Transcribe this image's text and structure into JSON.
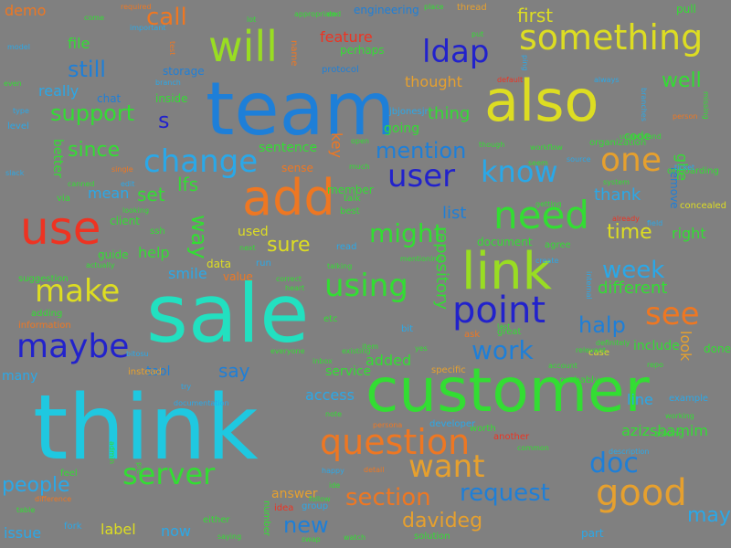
{
  "background": "#808080",
  "colors": {
    "cyan": "#1fc8e0",
    "teal": "#22e0c0",
    "blue": "#1e7fd8",
    "navy": "#2222cc",
    "green": "#33dd33",
    "lime": "#99dd22",
    "yellow": "#dddd22",
    "orange": "#ee7722",
    "gold": "#e6a02e",
    "red": "#ee3322",
    "purple": "#6a3acc",
    "sky": "#2aa8e8",
    "mint": "#44e088",
    "pale": "#cceeaa"
  },
  "words": [
    {
      "text": "think",
      "color": "cyan"
    },
    {
      "text": "sale",
      "color": "teal"
    },
    {
      "text": "team",
      "color": "blue"
    },
    {
      "text": "customer",
      "color": "green"
    },
    {
      "text": "also",
      "color": "yellow"
    },
    {
      "text": "link",
      "color": "lime"
    },
    {
      "text": "add",
      "color": "orange"
    },
    {
      "text": "use",
      "color": "red"
    },
    {
      "text": "something",
      "color": "yellow"
    },
    {
      "text": "will",
      "color": "lime"
    },
    {
      "text": "need",
      "color": "green"
    },
    {
      "text": "point",
      "color": "navy"
    },
    {
      "text": "question",
      "color": "orange"
    },
    {
      "text": "good",
      "color": "gold"
    },
    {
      "text": "maybe",
      "color": "navy"
    },
    {
      "text": "make",
      "color": "yellow"
    },
    {
      "text": "change",
      "color": "sky"
    },
    {
      "text": "using",
      "color": "green"
    },
    {
      "text": "one",
      "color": "gold"
    },
    {
      "text": "server",
      "color": "green"
    },
    {
      "text": "ldap",
      "color": "navy"
    },
    {
      "text": "know",
      "color": "sky"
    },
    {
      "text": "user",
      "color": "navy"
    },
    {
      "text": "see",
      "color": "orange"
    },
    {
      "text": "want",
      "color": "gold"
    },
    {
      "text": "work",
      "color": "blue"
    },
    {
      "text": "doc",
      "color": "blue"
    },
    {
      "text": "might",
      "color": "green"
    },
    {
      "text": "request",
      "color": "blue"
    },
    {
      "text": "section",
      "color": "orange"
    },
    {
      "text": "call",
      "color": "orange"
    },
    {
      "text": "still",
      "color": "blue"
    },
    {
      "text": "support",
      "color": "green"
    },
    {
      "text": "since",
      "color": "green"
    },
    {
      "text": "mention",
      "color": "blue"
    },
    {
      "text": "week",
      "color": "sky"
    },
    {
      "text": "halp",
      "color": "blue"
    },
    {
      "text": "people",
      "color": "sky"
    },
    {
      "text": "new",
      "color": "blue"
    },
    {
      "text": "davideg",
      "color": "gold"
    },
    {
      "text": "sure",
      "color": "yellow"
    },
    {
      "text": "way",
      "color": "green"
    },
    {
      "text": "time",
      "color": "yellow"
    },
    {
      "text": "well",
      "color": "green"
    },
    {
      "text": "first",
      "color": "yellow"
    },
    {
      "text": "set",
      "color": "green"
    },
    {
      "text": "lfs",
      "color": "green"
    },
    {
      "text": "help",
      "color": "green"
    },
    {
      "text": "smile",
      "color": "sky"
    },
    {
      "text": "different",
      "color": "green"
    },
    {
      "text": "say",
      "color": "blue"
    },
    {
      "text": "access",
      "color": "sky"
    },
    {
      "text": "line",
      "color": "sky"
    },
    {
      "text": "azizshamim",
      "color": "green"
    },
    {
      "text": "may",
      "color": "sky"
    },
    {
      "text": "issue",
      "color": "sky"
    },
    {
      "text": "label",
      "color": "yellow"
    },
    {
      "text": "thought",
      "color": "gold"
    },
    {
      "text": "thing",
      "color": "green"
    },
    {
      "text": "file",
      "color": "green"
    },
    {
      "text": "really",
      "color": "sky"
    },
    {
      "text": "s",
      "color": "navy"
    },
    {
      "text": "mean",
      "color": "sky"
    },
    {
      "text": "thank",
      "color": "sky"
    },
    {
      "text": "going",
      "color": "green"
    },
    {
      "text": "sentence",
      "color": "green"
    },
    {
      "text": "list",
      "color": "blue"
    },
    {
      "text": "many",
      "color": "sky"
    },
    {
      "text": "tool",
      "color": "blue"
    },
    {
      "text": "added",
      "color": "green"
    },
    {
      "text": "service",
      "color": "green"
    },
    {
      "text": "answer",
      "color": "gold"
    },
    {
      "text": "now",
      "color": "sky"
    },
    {
      "text": "right",
      "color": "green"
    },
    {
      "text": "include",
      "color": "green"
    },
    {
      "text": "look",
      "color": "gold"
    },
    {
      "text": "feature",
      "color": "red"
    },
    {
      "text": "repository",
      "color": "green"
    },
    {
      "text": "key",
      "color": "orange"
    },
    {
      "text": "used",
      "color": "yellow"
    },
    {
      "text": "storage",
      "color": "blue"
    },
    {
      "text": "engineering",
      "color": "blue"
    },
    {
      "text": "pull",
      "color": "green"
    },
    {
      "text": "demo",
      "color": "orange"
    },
    {
      "text": "better",
      "color": "green"
    },
    {
      "text": "client",
      "color": "green"
    },
    {
      "text": "document",
      "color": "green"
    },
    {
      "text": "member",
      "color": "green"
    },
    {
      "text": "guide",
      "color": "green"
    },
    {
      "text": "data",
      "color": "yellow"
    },
    {
      "text": "value",
      "color": "orange"
    },
    {
      "text": "code",
      "color": "green"
    },
    {
      "text": "remove",
      "color": "blue"
    },
    {
      "text": "ghe",
      "color": "green"
    },
    {
      "text": "done",
      "color": "green"
    },
    {
      "text": "inside",
      "color": "green"
    },
    {
      "text": "perhaps",
      "color": "green"
    },
    {
      "text": "protocol",
      "color": "blue"
    },
    {
      "text": "chat",
      "color": "blue"
    },
    {
      "text": "thread",
      "color": "gold"
    },
    {
      "text": "ssh",
      "color": "green"
    },
    {
      "text": "best",
      "color": "green"
    },
    {
      "text": "fork",
      "color": "sky"
    },
    {
      "text": "idea",
      "color": "red"
    },
    {
      "text": "group",
      "color": "sky"
    },
    {
      "text": "either",
      "color": "green"
    },
    {
      "text": "number",
      "color": "green"
    },
    {
      "text": "part",
      "color": "sky"
    },
    {
      "text": "solution",
      "color": "green"
    },
    {
      "text": "information",
      "color": "orange"
    },
    {
      "text": "suggestion",
      "color": "green"
    },
    {
      "text": "always",
      "color": "sky"
    },
    {
      "text": "name",
      "color": "orange"
    },
    {
      "text": "feel",
      "color": "green"
    },
    {
      "text": "open",
      "color": "green"
    },
    {
      "text": "sense",
      "color": "orange"
    },
    {
      "text": "talk",
      "color": "green"
    },
    {
      "text": "edit",
      "color": "sky"
    },
    {
      "text": "etc",
      "color": "green"
    },
    {
      "text": "bit",
      "color": "sky"
    },
    {
      "text": "ask",
      "color": "orange"
    },
    {
      "text": "great",
      "color": "green"
    },
    {
      "text": "case",
      "color": "yellow"
    },
    {
      "text": "repo",
      "color": "green"
    },
    {
      "text": "example",
      "color": "sky"
    },
    {
      "text": "another",
      "color": "red"
    },
    {
      "text": "probably",
      "color": "green"
    },
    {
      "text": "specific",
      "color": "gold"
    },
    {
      "text": "instead",
      "color": "gold"
    },
    {
      "text": "run",
      "color": "sky"
    },
    {
      "text": "read",
      "color": "sky"
    },
    {
      "text": "via",
      "color": "green"
    },
    {
      "text": "agree",
      "color": "green"
    },
    {
      "text": "adding",
      "color": "green"
    },
    {
      "text": "workflow",
      "color": "green"
    },
    {
      "text": "organization",
      "color": "green"
    },
    {
      "text": "onboarding",
      "color": "green"
    },
    {
      "text": "concealed",
      "color": "yellow"
    },
    {
      "text": "asking",
      "color": "green"
    },
    {
      "text": "worth",
      "color": "green"
    },
    {
      "text": "developer",
      "color": "sky"
    },
    {
      "text": "looking",
      "color": "green"
    },
    {
      "text": "canned",
      "color": "green"
    },
    {
      "text": "even",
      "color": "green"
    },
    {
      "text": "model",
      "color": "sky"
    },
    {
      "text": "type",
      "color": "sky"
    },
    {
      "text": "level",
      "color": "sky"
    },
    {
      "text": "jbjonesjr",
      "color": "sky"
    },
    {
      "text": "much",
      "color": "green"
    },
    {
      "text": "though",
      "color": "green"
    },
    {
      "text": "seem",
      "color": "green"
    },
    {
      "text": "source",
      "color": "sky"
    },
    {
      "text": "understand",
      "color": "green"
    },
    {
      "text": "branches",
      "color": "sky"
    },
    {
      "text": "missing",
      "color": "green"
    },
    {
      "text": "person",
      "color": "orange"
    },
    {
      "text": "ticket",
      "color": "sky"
    },
    {
      "text": "system",
      "color": "green"
    },
    {
      "text": "already",
      "color": "red"
    },
    {
      "text": "field",
      "color": "sky"
    },
    {
      "text": "getting",
      "color": "green"
    },
    {
      "text": "come",
      "color": "green"
    },
    {
      "text": "required",
      "color": "orange"
    },
    {
      "text": "important",
      "color": "sky"
    },
    {
      "text": "test",
      "color": "orange"
    },
    {
      "text": "branch",
      "color": "sky"
    },
    {
      "text": "lot",
      "color": "green"
    },
    {
      "text": "appropriate",
      "color": "green"
    },
    {
      "text": "end",
      "color": "green"
    },
    {
      "text": "place",
      "color": "green"
    },
    {
      "text": "put",
      "color": "green"
    },
    {
      "text": "ping",
      "color": "sky"
    },
    {
      "text": "default",
      "color": "red"
    },
    {
      "text": "slack",
      "color": "sky"
    },
    {
      "text": "single",
      "color": "orange"
    },
    {
      "text": "actually",
      "color": "green"
    },
    {
      "text": "next",
      "color": "green"
    },
    {
      "text": "correct",
      "color": "green"
    },
    {
      "text": "heart",
      "color": "green"
    },
    {
      "text": "talking",
      "color": "green"
    },
    {
      "text": "mentioning",
      "color": "green"
    },
    {
      "text": "create",
      "color": "sky"
    },
    {
      "text": "internal",
      "color": "sky"
    },
    {
      "text": "last",
      "color": "green"
    },
    {
      "text": "definitely",
      "color": "green"
    },
    {
      "text": "relevant",
      "color": "green"
    },
    {
      "text": "account",
      "color": "green"
    },
    {
      "text": "bitosu",
      "color": "sky"
    },
    {
      "text": "everyone",
      "color": "green"
    },
    {
      "text": "existing",
      "color": "green"
    },
    {
      "text": "item",
      "color": "green"
    },
    {
      "text": "yes",
      "color": "green"
    },
    {
      "text": "inbox",
      "color": "green"
    },
    {
      "text": "try",
      "color": "sky"
    },
    {
      "text": "documentation",
      "color": "sky"
    },
    {
      "text": "note",
      "color": "green"
    },
    {
      "text": "persona",
      "color": "orange"
    },
    {
      "text": "working",
      "color": "green"
    },
    {
      "text": "common",
      "color": "green"
    },
    {
      "text": "description",
      "color": "sky"
    },
    {
      "text": "happy",
      "color": "sky"
    },
    {
      "text": "detail",
      "color": "orange"
    },
    {
      "text": "admin",
      "color": "green"
    },
    {
      "text": "pre",
      "color": "green"
    },
    {
      "text": "ide",
      "color": "green"
    },
    {
      "text": "follow",
      "color": "green"
    },
    {
      "text": "table",
      "color": "green"
    },
    {
      "text": "difference",
      "color": "orange"
    },
    {
      "text": "saying",
      "color": "green"
    },
    {
      "text": "swap",
      "color": "green"
    },
    {
      "text": "watch",
      "color": "green"
    },
    {
      "text": "find",
      "color": "sky"
    },
    {
      "text": "approval",
      "color": "green"
    },
    {
      "text": "enterprise",
      "color": "green"
    },
    {
      "text": "integration",
      "color": "green"
    },
    {
      "text": "entry",
      "color": "orange"
    },
    {
      "text": "status",
      "color": "green"
    },
    {
      "text": "start",
      "color": "green"
    },
    {
      "text": "url",
      "color": "orange"
    },
    {
      "text": "git",
      "color": "green"
    },
    {
      "text": "word",
      "color": "green"
    },
    {
      "text": "someone",
      "color": "green"
    },
    {
      "text": "email",
      "color": "green"
    },
    {
      "text": "team",
      "color": "green"
    },
    {
      "text": "e",
      "color": "orange"
    }
  ]
}
